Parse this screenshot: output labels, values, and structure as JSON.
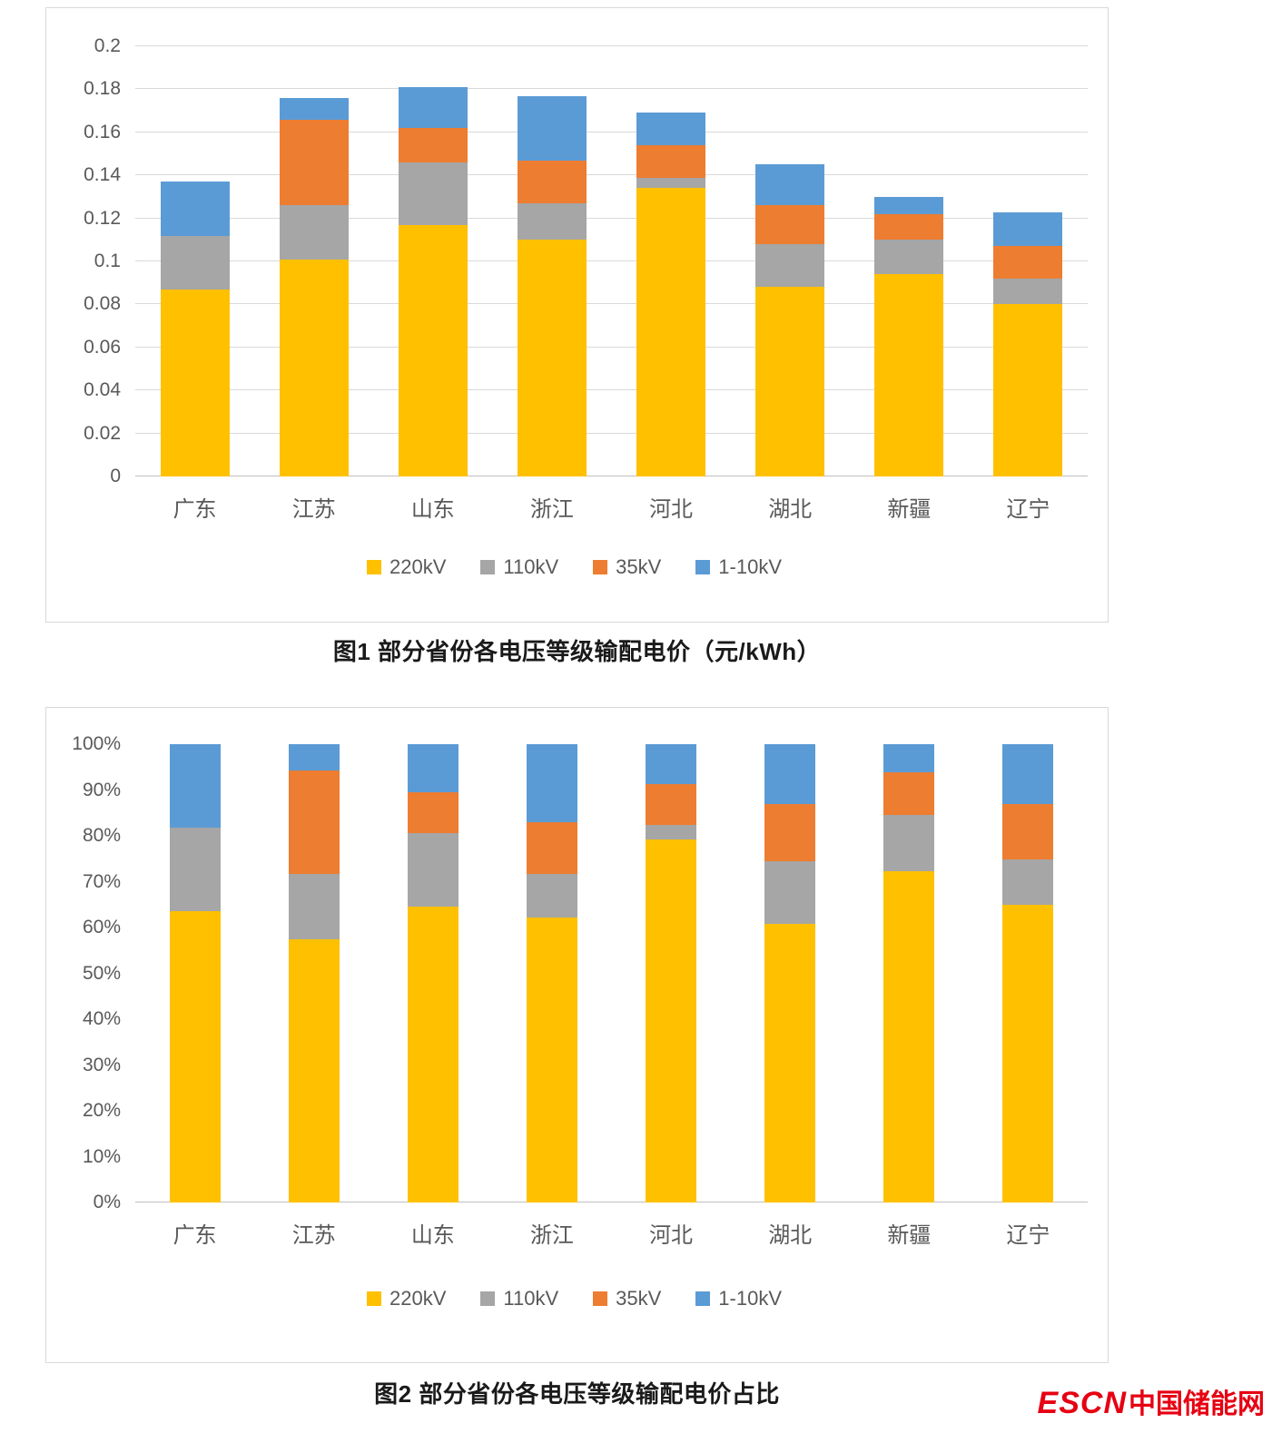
{
  "figures": [
    {
      "caption": "图1 部分省份各电压等级输配电价（元/kWh）"
    },
    {
      "caption": "图2 部分省份各电压等级输配电价占比"
    }
  ],
  "logo": {
    "en": "ESCN",
    "cn": "中国储能网",
    "color": "#e60012"
  },
  "colors": {
    "v220": "#FFC000",
    "v110": "#A6A6A6",
    "v35": "#ED7D31",
    "v1_10": "#5B9BD5"
  },
  "chart_data": [
    {
      "type": "bar",
      "stacked": true,
      "title": "图1 部分省份各电压等级输配电价（元/kWh）",
      "xlabel": "",
      "ylabel": "",
      "ylim": [
        0,
        0.2
      ],
      "ytick_labels": [
        "0",
        "0.02",
        "0.04",
        "0.06",
        "0.08",
        "0.1",
        "0.12",
        "0.14",
        "0.16",
        "0.18",
        "0.2"
      ],
      "grid": true,
      "legend_position": "bottom",
      "categories": [
        "广东",
        "江苏",
        "山东",
        "浙江",
        "河北",
        "湖北",
        "新疆",
        "辽宁"
      ],
      "series": [
        {
          "name": "220kV",
          "color": "#FFC000",
          "values": [
            0.087,
            0.101,
            0.117,
            0.11,
            0.134,
            0.088,
            0.094,
            0.08
          ]
        },
        {
          "name": "110kV",
          "color": "#A6A6A6",
          "values": [
            0.025,
            0.025,
            0.029,
            0.017,
            0.005,
            0.02,
            0.016,
            0.012
          ]
        },
        {
          "name": "35kV",
          "color": "#ED7D31",
          "values": [
            0.0,
            0.04,
            0.016,
            0.02,
            0.015,
            0.018,
            0.012,
            0.015
          ]
        },
        {
          "name": "1-10kV",
          "color": "#5B9BD5",
          "values": [
            0.025,
            0.01,
            0.019,
            0.03,
            0.015,
            0.019,
            0.008,
            0.016
          ]
        }
      ]
    },
    {
      "type": "bar",
      "stacked": true,
      "percent": true,
      "title": "图2 部分省份各电压等级输配电价占比",
      "xlabel": "",
      "ylabel": "",
      "ylim": [
        0,
        100
      ],
      "ytick_labels": [
        "0%",
        "10%",
        "20%",
        "30%",
        "40%",
        "50%",
        "60%",
        "70%",
        "80%",
        "90%",
        "100%"
      ],
      "grid": false,
      "legend_position": "bottom",
      "categories": [
        "广东",
        "江苏",
        "山东",
        "浙江",
        "河北",
        "湖北",
        "新疆",
        "辽宁"
      ],
      "series": [
        {
          "name": "220kV",
          "color": "#FFC000",
          "values": [
            63.5,
            57.4,
            64.6,
            62.1,
            79.3,
            60.7,
            72.3,
            65.0
          ]
        },
        {
          "name": "110kV",
          "color": "#A6A6A6",
          "values": [
            18.3,
            14.2,
            16.0,
            9.6,
            3.0,
            13.8,
            12.3,
            9.8
          ]
        },
        {
          "name": "35kV",
          "color": "#ED7D31",
          "values": [
            0.0,
            22.7,
            8.9,
            11.3,
            8.9,
            12.4,
            9.2,
            12.2
          ]
        },
        {
          "name": "1-10kV",
          "color": "#5B9BD5",
          "values": [
            18.2,
            5.7,
            10.5,
            17.0,
            8.8,
            13.1,
            6.2,
            13.0
          ]
        }
      ]
    }
  ]
}
